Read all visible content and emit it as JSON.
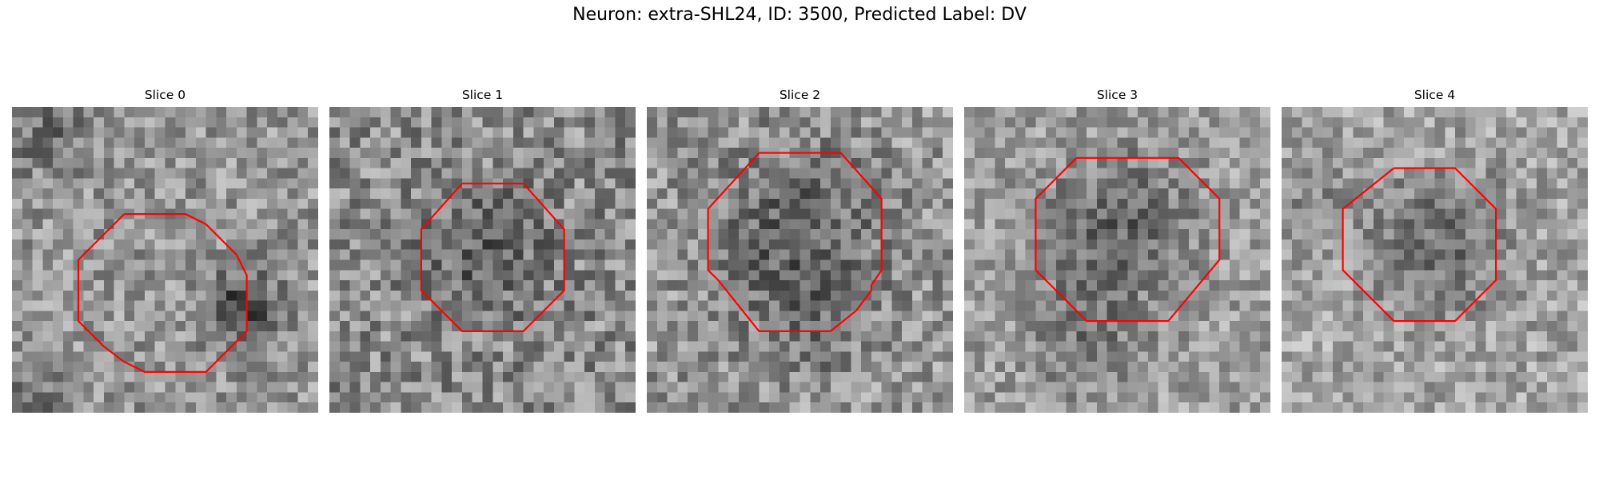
{
  "figure": {
    "title": "Neuron: extra-SHL24, ID: 3500, Predicted Label: DV"
  },
  "overlay_color": "#ff0000",
  "panels": [
    {
      "title": "Slice 0",
      "image": "grayscale-noise-patch",
      "overlay": "red-octagon-contour"
    },
    {
      "title": "Slice 1",
      "image": "grayscale-noise-patch",
      "overlay": "red-octagon-contour"
    },
    {
      "title": "Slice 2",
      "image": "grayscale-noise-patch",
      "overlay": "red-octagon-contour"
    },
    {
      "title": "Slice 3",
      "image": "grayscale-noise-patch",
      "overlay": "red-octagon-contour"
    },
    {
      "title": "Slice 4",
      "image": "grayscale-noise-patch",
      "overlay": "red-octagon-contour"
    }
  ]
}
